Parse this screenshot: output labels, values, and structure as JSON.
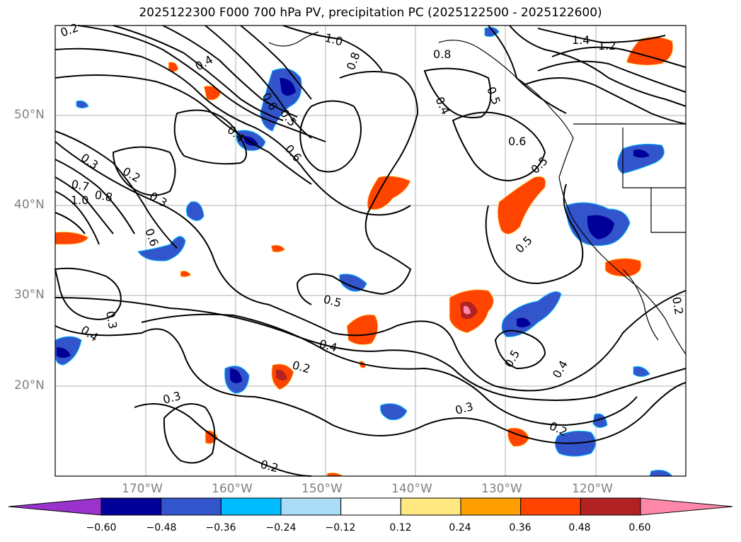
{
  "title": "2025122300 F000 700 hPa PV, precipitation PC (2025122500 - 2025122600)",
  "lat_labels": [
    "50°N",
    "40°N",
    "30°N",
    "20°N"
  ],
  "lon_labels": [
    "170°W",
    "160°W",
    "150°W",
    "140°W",
    "130°W",
    "120°W"
  ],
  "contour_labels": [
    "0.2",
    "0.4",
    "1.0",
    "0.8",
    "0.8",
    "0.4",
    "0.5",
    "0.6",
    "0.4",
    "0.6",
    "0.5",
    "1.4",
    "1.2",
    "0.6",
    "0.3",
    "0.2",
    "0.3",
    "0.7",
    "0.8",
    "1.0",
    "0.6",
    "0.3",
    "0.4",
    "0.5",
    "0.5",
    "0.5",
    "0.4",
    "0.2",
    "0.3",
    "0.3",
    "0.2",
    "0.2",
    "0.5",
    "0.4",
    "0.2"
  ],
  "colorbar": {
    "ticks": [
      "−0.60",
      "−0.48",
      "−0.36",
      "−0.24",
      "−0.12",
      "0.12",
      "0.24",
      "0.36",
      "0.48",
      "0.60"
    ],
    "colors": [
      "#9933cc",
      "#000099",
      "#3355cc",
      "#00bbff",
      "#aaddf5",
      "#ffffff",
      "#ffe880",
      "#ffa000",
      "#ff4400",
      "#b22222",
      "#ff88aa"
    ]
  }
}
